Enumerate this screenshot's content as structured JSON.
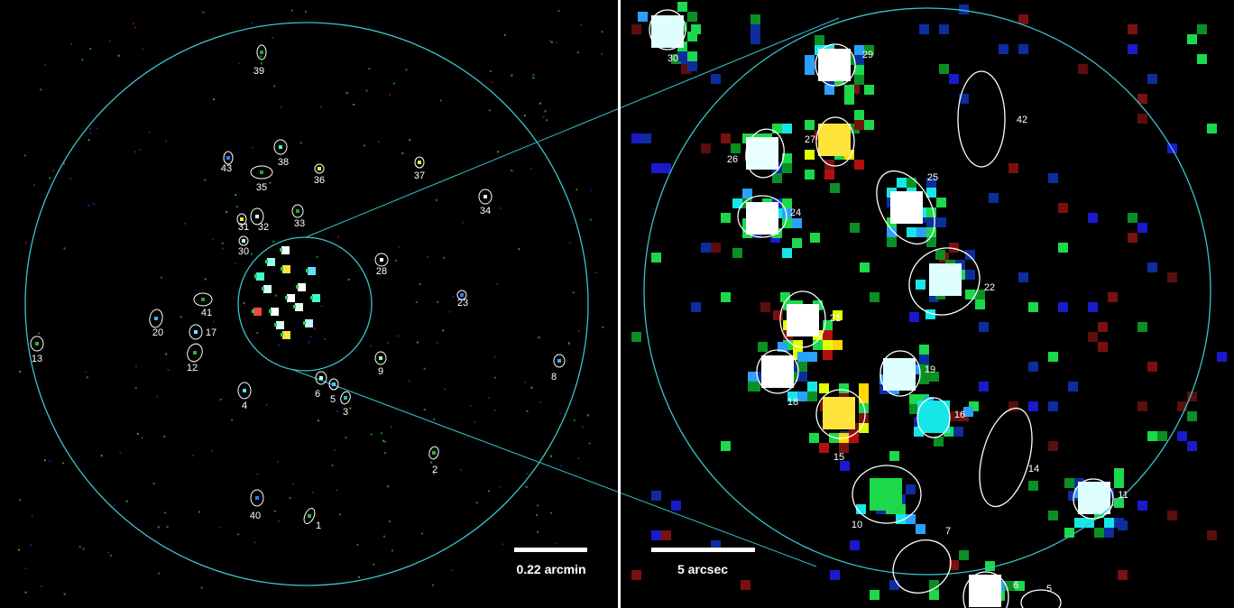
{
  "left_panel": {
    "scalebar_label": "0.22 arcmin",
    "source_labels": [
      "1",
      "2",
      "3",
      "4",
      "5",
      "6",
      "8",
      "9",
      "12",
      "13",
      "17",
      "20",
      "23",
      "28",
      "30",
      "31",
      "32",
      "33",
      "34",
      "35",
      "36",
      "37",
      "38",
      "39",
      "40",
      "41",
      "43"
    ]
  },
  "right_panel": {
    "scalebar_label": "5 arcsec",
    "source_labels": [
      "5",
      "6",
      "7",
      "10",
      "11",
      "14",
      "15",
      "16",
      "18",
      "19",
      "21",
      "22",
      "24",
      "25",
      "26",
      "27",
      "29",
      "30",
      "42"
    ]
  },
  "colors": {
    "region_circle": "#39c5cc",
    "source_ellipse": "#ffffff",
    "divider": "#ffffff",
    "background": "#000000"
  }
}
